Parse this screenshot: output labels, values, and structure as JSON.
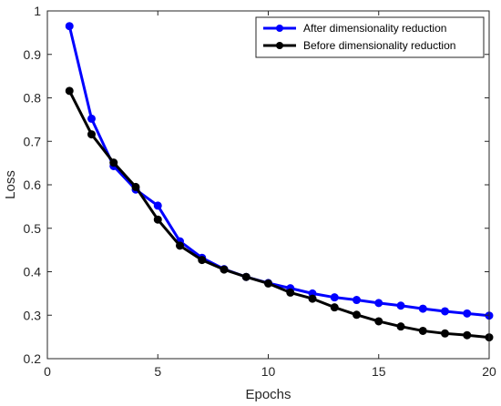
{
  "chart_data": {
    "type": "line",
    "title": "",
    "xlabel": "Epochs",
    "ylabel": "Loss",
    "xlim": [
      0,
      20
    ],
    "ylim": [
      0.2,
      1
    ],
    "xticks": [
      0,
      5,
      10,
      15,
      20
    ],
    "yticks": [
      0.2,
      0.3,
      0.4,
      0.5,
      0.6,
      0.7,
      0.8,
      0.9,
      1
    ],
    "xtick_labels": [
      "0",
      "5",
      "10",
      "15",
      "20"
    ],
    "ytick_labels": [
      "0.2",
      "0.3",
      "0.4",
      "0.5",
      "0.6",
      "0.7",
      "0.8",
      "0.9",
      "1"
    ],
    "grid": false,
    "legend_position": "top-right",
    "x": [
      1,
      2,
      3,
      4,
      5,
      6,
      7,
      8,
      9,
      10,
      11,
      12,
      13,
      14,
      15,
      16,
      17,
      18,
      19,
      20
    ],
    "series": [
      {
        "name": "After dimensionality reduction",
        "color": "#0000ff",
        "values": [
          0.965,
          0.752,
          0.643,
          0.589,
          0.552,
          0.47,
          0.432,
          0.406,
          0.388,
          0.374,
          0.362,
          0.35,
          0.341,
          0.335,
          0.328,
          0.322,
          0.315,
          0.309,
          0.304,
          0.299
        ]
      },
      {
        "name": "Before dimensionality reduction",
        "color": "#000000",
        "values": [
          0.816,
          0.716,
          0.651,
          0.595,
          0.52,
          0.46,
          0.427,
          0.405,
          0.388,
          0.373,
          0.352,
          0.338,
          0.318,
          0.301,
          0.286,
          0.274,
          0.264,
          0.258,
          0.254,
          0.249
        ]
      }
    ]
  }
}
